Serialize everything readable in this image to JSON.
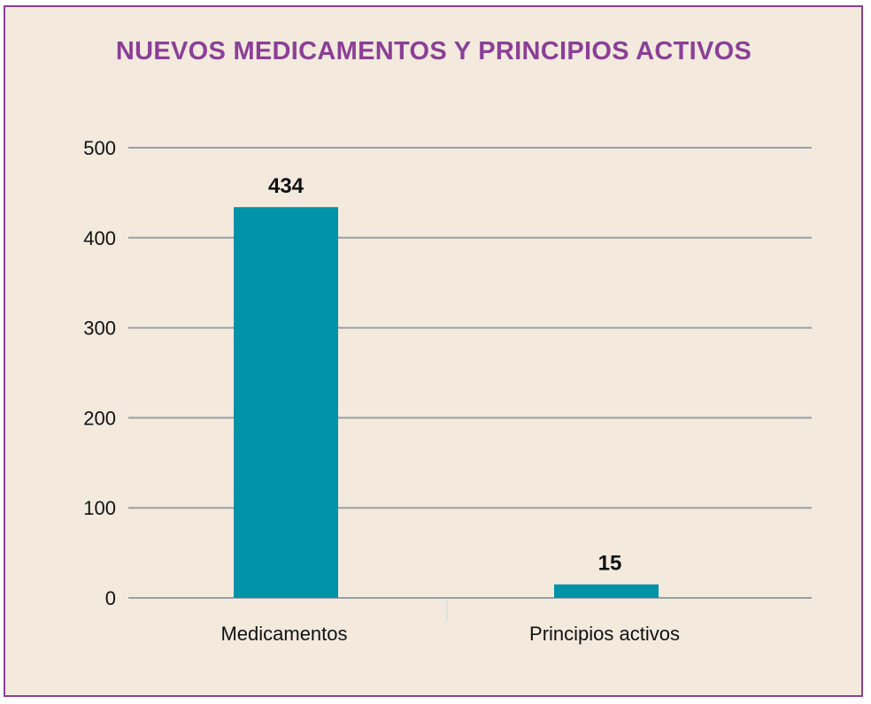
{
  "chart_data": {
    "type": "bar",
    "title": "NUEVOS MEDICAMENTOS Y PRINCIPIOS ACTIVOS",
    "categories": [
      "Medicamentos",
      "Principios activos"
    ],
    "values": [
      434,
      15
    ],
    "data_labels": [
      "434",
      "15"
    ],
    "y_ticks": [
      "0",
      "100",
      "200",
      "300",
      "400",
      "500"
    ],
    "ylim": [
      0,
      500
    ],
    "grid": true,
    "legend": "none"
  },
  "colors": {
    "bar": "#0093a8",
    "grid": "#9aa0a6",
    "title": "#8b3f96",
    "background": "#f3eadd",
    "border": "#8b3f96"
  }
}
